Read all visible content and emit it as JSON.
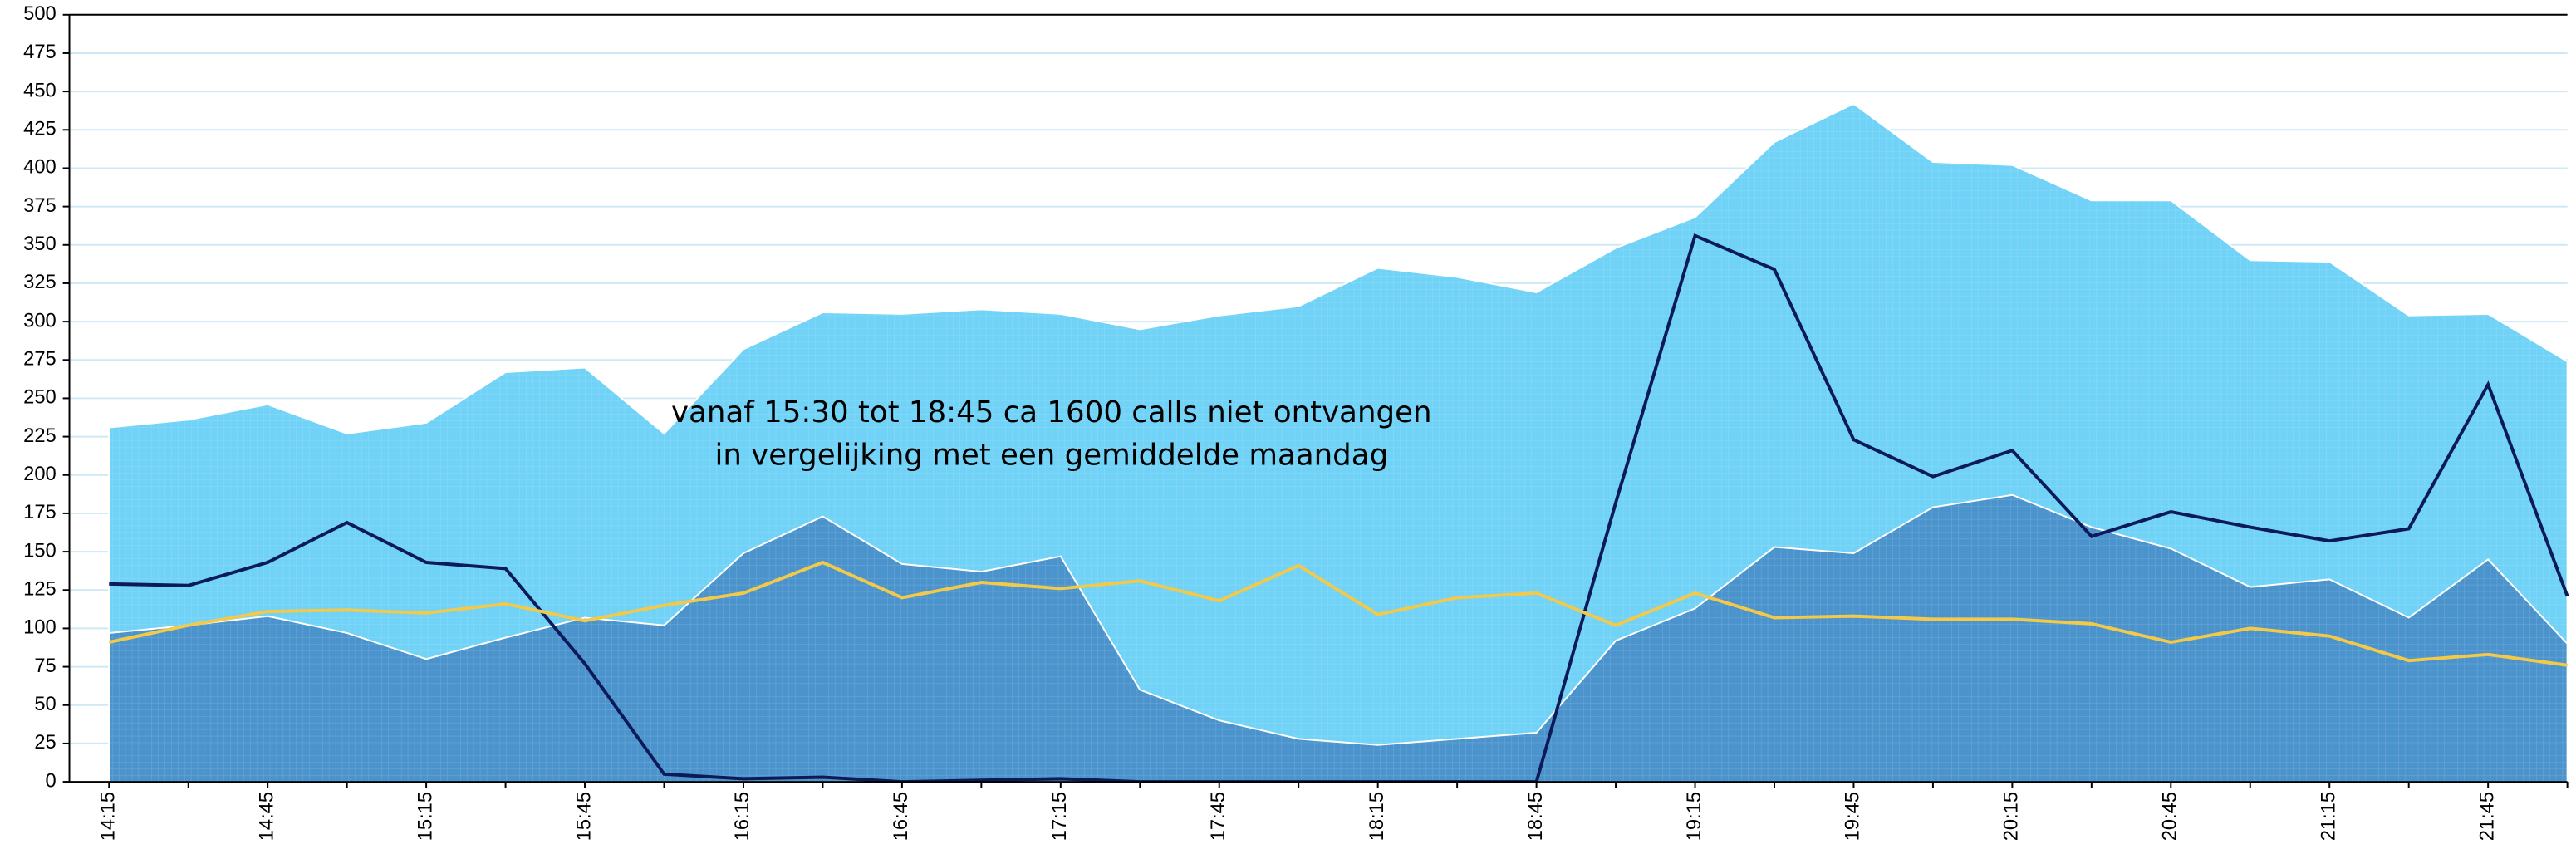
{
  "chart_data": {
    "type": "area",
    "annotations": [
      "vanaf 15:30 tot 18:45 ca 1600 calls  niet ontvangen",
      "in vergelijking met een gemiddelde maandag"
    ],
    "categories": [
      "14:15",
      null,
      "14:45",
      null,
      "15:15",
      null,
      "15:45",
      null,
      "16:15",
      null,
      "16:45",
      null,
      "17:15",
      null,
      "17:45",
      null,
      "18:15",
      null,
      "18:45",
      null,
      "19:15",
      null,
      "19:45",
      null,
      "20:15",
      null,
      "20:45",
      null,
      "21:15",
      null,
      "21:45",
      null
    ],
    "series": [
      {
        "type": "area",
        "color": "#6fd2f6",
        "values": [
          231,
          236,
          246,
          227,
          234,
          267,
          270,
          227,
          282,
          306,
          305,
          308,
          305,
          295,
          304,
          310,
          335,
          329,
          319,
          348,
          368,
          417,
          442,
          404,
          402,
          379,
          379,
          340,
          339,
          304,
          305,
          274
        ]
      },
      {
        "type": "area",
        "color": "#4a93cc",
        "values": [
          97,
          102,
          108,
          97,
          80,
          94,
          107,
          102,
          149,
          173,
          142,
          137,
          147,
          60,
          40,
          28,
          24,
          28,
          32,
          92,
          113,
          153,
          149,
          179,
          187,
          166,
          152,
          127,
          132,
          107,
          145,
          90
        ]
      },
      {
        "type": "line",
        "color": "#0c1a5a",
        "values": [
          129,
          128,
          143,
          169,
          143,
          139,
          77,
          5,
          2,
          3,
          0,
          1,
          2,
          0,
          0,
          0,
          0,
          0,
          0,
          182,
          356,
          334,
          223,
          199,
          216,
          160,
          176,
          166,
          157,
          165,
          259,
          121
        ]
      },
      {
        "type": "line",
        "color": "#f3c94a",
        "values": [
          91,
          102,
          111,
          112,
          110,
          116,
          105,
          115,
          123,
          143,
          120,
          130,
          126,
          131,
          118,
          141,
          109,
          120,
          123,
          102,
          123,
          107,
          108,
          106,
          106,
          103,
          91,
          100,
          95,
          79,
          83,
          76
        ]
      }
    ],
    "ylim": [
      0,
      500
    ],
    "yticks": [
      0,
      25,
      50,
      75,
      100,
      125,
      150,
      175,
      200,
      225,
      250,
      275,
      300,
      325,
      350,
      375,
      400,
      425,
      450,
      475,
      500
    ],
    "grid": true
  }
}
